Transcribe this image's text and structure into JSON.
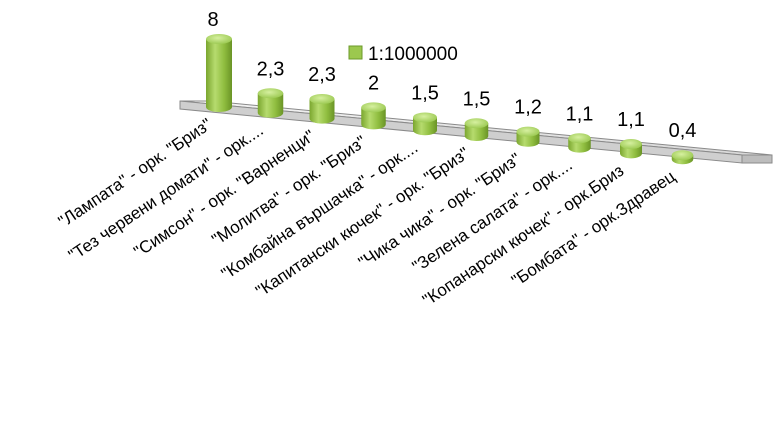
{
  "chart_data": {
    "type": "bar",
    "style": "3d-cylinder",
    "categories": [
      "\"Лампата\" - орк. \"Бриз\"",
      "\"Тез червени домати\" - орк....",
      "\"Симсон\" - орк. \"Варненци\"",
      "\"Молитва\" - орк. \"Бриз\"",
      "\"Комбайна вършачка\" - орк....",
      "\"Капитански кючек\" - орк. \"Бриз\"",
      "\"Чика чика\" - орк. \"Бриз\"",
      "\"Зелена салата\" - орк....",
      "\"Копанарски кючек\" - орк.Бриз",
      "\"Бомбата\" - орк.Здравец"
    ],
    "values": [
      8,
      2.3,
      2.3,
      2,
      1.5,
      1.5,
      1.2,
      1.1,
      1.1,
      0.4
    ],
    "value_labels": [
      "8",
      "2,3",
      "2,3",
      "2",
      "1,5",
      "1,5",
      "1,2",
      "1,1",
      "1,1",
      "0,4"
    ],
    "series": [
      {
        "name": "1:1000000",
        "values": [
          8,
          2.3,
          2.3,
          2,
          1.5,
          1.5,
          1.2,
          1.1,
          1.1,
          0.4
        ]
      }
    ],
    "legend": {
      "label": "1:1000000",
      "placement": "top-right"
    },
    "bar_color": "#8DBB3E",
    "ylim": [
      0,
      8
    ],
    "grid": false
  }
}
